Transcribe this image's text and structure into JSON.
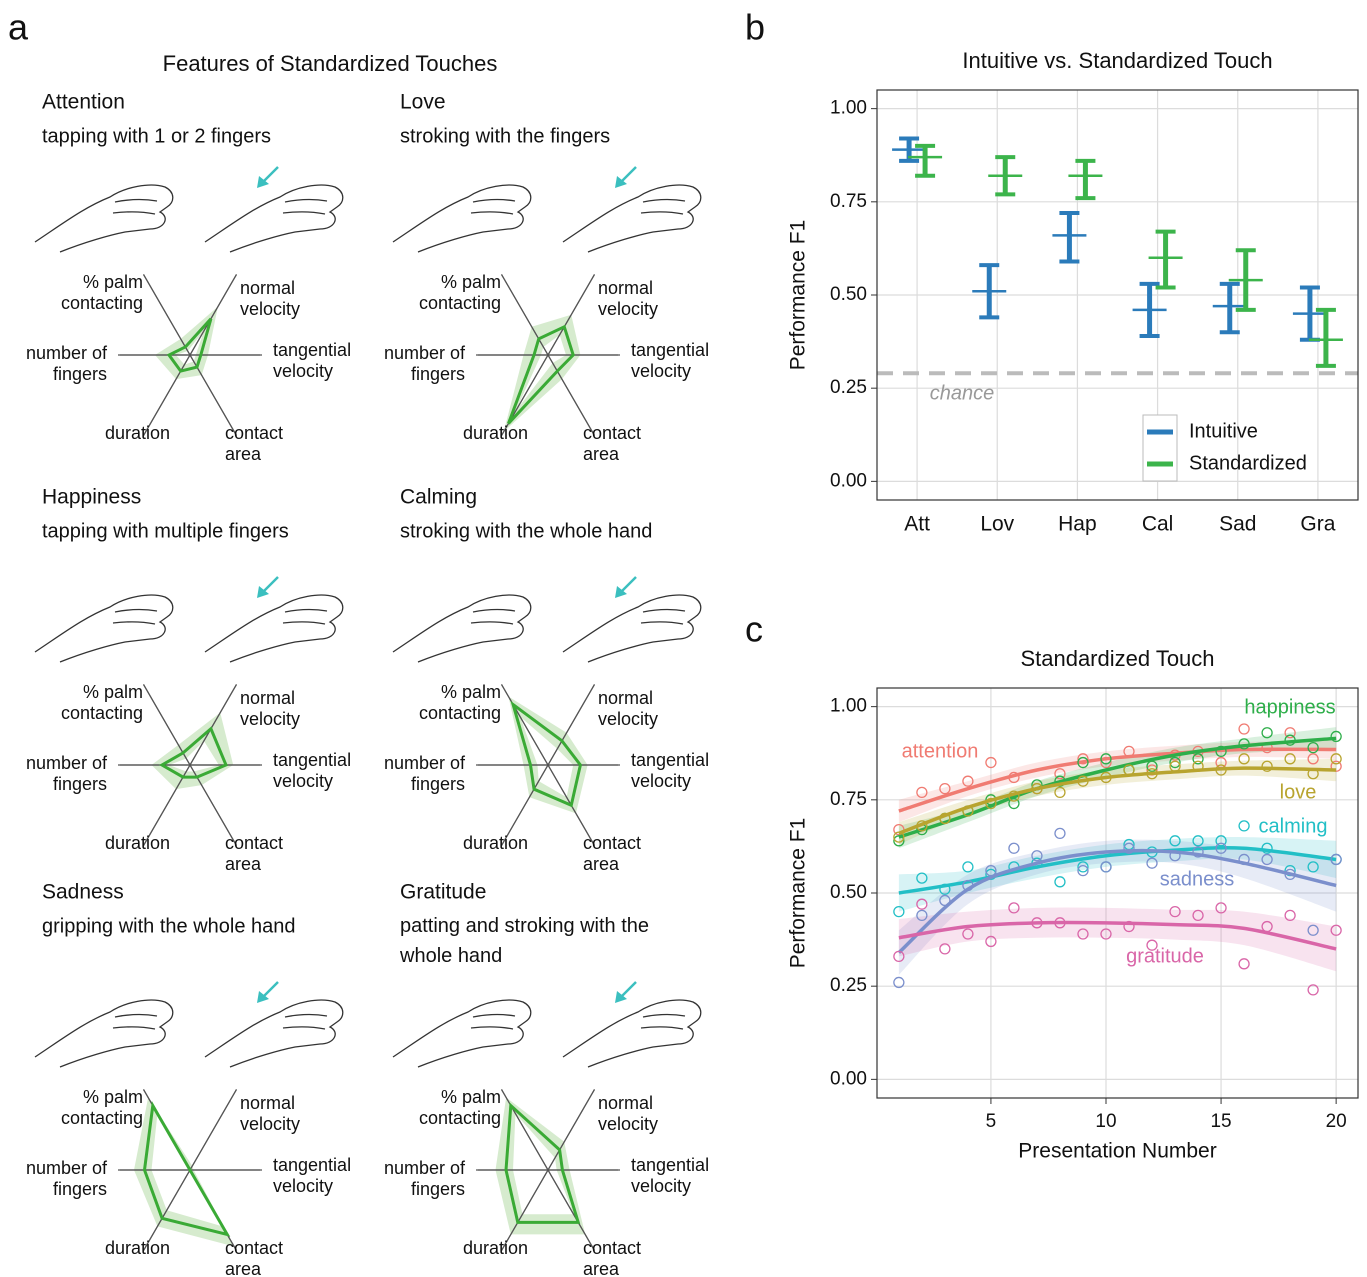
{
  "panels": [
    {
      "label": "a",
      "title": "Features of Standardized Touches"
    },
    {
      "label": "b"
    },
    {
      "label": "c"
    }
  ],
  "chart_data": [
    {
      "type": "radar",
      "title": "Attention",
      "subtitle": "tapping with 1 or 2 fingers",
      "axes": [
        "% palm\ncontacting",
        "normal\nvelocity",
        "tangential\nvelocity",
        "contact\narea",
        "duration",
        "number of\nfingers"
      ],
      "rlim": [
        0,
        1
      ],
      "color": "#3aaa35",
      "values": [
        0.1,
        0.45,
        0.15,
        0.15,
        0.2,
        0.3
      ],
      "band_lower": [
        0.05,
        0.3,
        0.08,
        0.08,
        0.12,
        0.2
      ],
      "band_upper": [
        0.2,
        0.6,
        0.25,
        0.25,
        0.3,
        0.5
      ]
    },
    {
      "type": "radar",
      "title": "Love",
      "subtitle": "stroking with the fingers",
      "axes": [
        "% palm\ncontacting",
        "normal\nvelocity",
        "tangential\nvelocity",
        "contact\narea",
        "duration",
        "number of\nfingers"
      ],
      "rlim": [
        0,
        1
      ],
      "color": "#3aaa35",
      "values": [
        0.2,
        0.35,
        0.35,
        0.2,
        0.85,
        0.2
      ],
      "band_lower": [
        0.1,
        0.25,
        0.25,
        0.1,
        0.7,
        0.1
      ],
      "band_upper": [
        0.35,
        0.5,
        0.45,
        0.3,
        0.95,
        0.35
      ]
    },
    {
      "type": "radar",
      "title": "Happiness",
      "subtitle": "tapping with multiple fingers",
      "axes": [
        "% palm\ncontacting",
        "normal\nvelocity",
        "tangential\nvelocity",
        "contact\narea",
        "duration",
        "number of\nfingers"
      ],
      "rlim": [
        0,
        1
      ],
      "color": "#3aaa35",
      "values": [
        0.15,
        0.45,
        0.5,
        0.15,
        0.15,
        0.4
      ],
      "band_lower": [
        0.08,
        0.3,
        0.4,
        0.08,
        0.08,
        0.3
      ],
      "band_upper": [
        0.25,
        0.65,
        0.6,
        0.25,
        0.3,
        0.55
      ]
    },
    {
      "type": "radar",
      "title": "Calming",
      "subtitle": "stroking with the whole hand",
      "axes": [
        "% palm\ncontacting",
        "normal\nvelocity",
        "tangential\nvelocity",
        "contact\narea",
        "duration",
        "number of\nfingers"
      ],
      "rlim": [
        0,
        1
      ],
      "color": "#3aaa35",
      "values": [
        0.75,
        0.3,
        0.45,
        0.5,
        0.3,
        0.25
      ],
      "band_lower": [
        0.6,
        0.2,
        0.35,
        0.4,
        0.2,
        0.15
      ],
      "band_upper": [
        0.85,
        0.4,
        0.55,
        0.6,
        0.4,
        0.35
      ]
    },
    {
      "type": "radar",
      "title": "Sadness",
      "subtitle": "gripping with the whole hand",
      "axes": [
        "% palm\ncontacting",
        "normal\nvelocity",
        "tangential\nvelocity",
        "contact\narea",
        "duration",
        "number of\nfingers"
      ],
      "rlim": [
        0,
        1
      ],
      "color": "#3aaa35",
      "values": [
        0.8,
        0,
        0,
        0.8,
        0.6,
        0.65
      ],
      "band_lower": [
        0.7,
        0,
        0,
        0.7,
        0.5,
        0.55
      ],
      "band_upper": [
        0.9,
        0.05,
        0.05,
        0.95,
        0.7,
        0.8
      ]
    },
    {
      "type": "radar",
      "title": "Gratitude",
      "subtitle": "patting and stroking with the\nwhole hand",
      "axes": [
        "% palm\ncontacting",
        "normal\nvelocity",
        "tangential\nvelocity",
        "contact\narea",
        "duration",
        "number of\nfingers"
      ],
      "rlim": [
        0,
        1
      ],
      "color": "#3aaa35",
      "values": [
        0.8,
        0.25,
        0.2,
        0.65,
        0.65,
        0.6
      ],
      "band_lower": [
        0.7,
        0.15,
        0.12,
        0.55,
        0.55,
        0.5
      ],
      "band_upper": [
        0.9,
        0.35,
        0.3,
        0.8,
        0.8,
        0.75
      ]
    },
    {
      "type": "errorbar",
      "title": "Intuitive vs. Standardized Touch",
      "ylabel": "Performance F1",
      "categories": [
        "Att",
        "Lov",
        "Hap",
        "Cal",
        "Sad",
        "Gra"
      ],
      "series": [
        {
          "name": "Intuitive",
          "color": "#2b7bba",
          "values": [
            0.89,
            0.51,
            0.66,
            0.46,
            0.47,
            0.45
          ],
          "lower": [
            0.86,
            0.44,
            0.59,
            0.39,
            0.4,
            0.38
          ],
          "upper": [
            0.92,
            0.58,
            0.72,
            0.53,
            0.53,
            0.52
          ]
        },
        {
          "name": "Standardized",
          "color": "#3cb44b",
          "values": [
            0.87,
            0.82,
            0.82,
            0.6,
            0.54,
            0.38
          ],
          "lower": [
            0.82,
            0.77,
            0.76,
            0.52,
            0.46,
            0.31
          ],
          "upper": [
            0.9,
            0.87,
            0.86,
            0.67,
            0.62,
            0.46
          ]
        }
      ],
      "ylim": [
        -0.05,
        1.05
      ],
      "yticks": [
        {
          "value": 0,
          "label": "0.00"
        },
        {
          "value": 0.25,
          "label": "0.25"
        },
        {
          "value": 0.5,
          "label": "0.50"
        },
        {
          "value": 0.75,
          "label": "0.75"
        },
        {
          "value": 1,
          "label": "1.00"
        }
      ],
      "reference_line": {
        "value": 0.29,
        "label": "chance"
      },
      "grid": true,
      "legend": "bottom-right"
    },
    {
      "type": "scatter_smooth",
      "title": "Standardized Touch",
      "xlabel": "Presentation Number",
      "ylabel": "Performance F1",
      "x": [
        1,
        2,
        3,
        4,
        5,
        6,
        7,
        8,
        9,
        10,
        11,
        12,
        13,
        14,
        15,
        16,
        17,
        18,
        19,
        20
      ],
      "fit_x": [
        1,
        4,
        7,
        10,
        13,
        16,
        20
      ],
      "series": [
        {
          "name": "attention",
          "color": "#f07b72",
          "values": [
            0.67,
            0.77,
            0.78,
            0.8,
            0.85,
            0.81,
            0.78,
            0.82,
            0.86,
            0.85,
            0.88,
            0.83,
            0.87,
            0.88,
            0.85,
            0.94,
            0.89,
            0.93,
            0.86,
            0.84
          ],
          "fit": [
            0.72,
            0.78,
            0.83,
            0.86,
            0.875,
            0.885,
            0.885
          ],
          "fit_lower": [
            0.69,
            0.76,
            0.81,
            0.84,
            0.855,
            0.865,
            0.86
          ],
          "fit_upper": [
            0.75,
            0.8,
            0.85,
            0.88,
            0.895,
            0.905,
            0.91
          ]
        },
        {
          "name": "happiness",
          "color": "#2eae4a",
          "values": [
            0.64,
            0.67,
            0.7,
            0.72,
            0.75,
            0.74,
            0.79,
            0.8,
            0.85,
            0.86,
            0.83,
            0.84,
            0.85,
            0.86,
            0.88,
            0.9,
            0.93,
            0.91,
            0.89,
            0.92
          ],
          "fit": [
            0.65,
            0.71,
            0.78,
            0.83,
            0.87,
            0.895,
            0.915
          ],
          "fit_lower": [
            0.62,
            0.69,
            0.76,
            0.81,
            0.85,
            0.875,
            0.885
          ],
          "fit_upper": [
            0.68,
            0.73,
            0.8,
            0.85,
            0.89,
            0.915,
            0.945
          ]
        },
        {
          "name": "love",
          "color": "#b8a42f",
          "values": [
            0.65,
            0.68,
            0.7,
            0.72,
            0.74,
            0.76,
            0.78,
            0.77,
            0.8,
            0.81,
            0.83,
            0.82,
            0.84,
            0.84,
            0.83,
            0.86,
            0.84,
            0.86,
            0.82,
            0.86
          ],
          "fit": [
            0.66,
            0.73,
            0.78,
            0.81,
            0.825,
            0.835,
            0.83
          ],
          "fit_lower": [
            0.63,
            0.71,
            0.76,
            0.79,
            0.805,
            0.815,
            0.8
          ],
          "fit_upper": [
            0.69,
            0.75,
            0.8,
            0.83,
            0.845,
            0.855,
            0.86
          ]
        },
        {
          "name": "calming",
          "color": "#22bfc6",
          "values": [
            0.45,
            0.54,
            0.51,
            0.57,
            0.55,
            0.57,
            0.58,
            0.53,
            0.57,
            0.57,
            0.63,
            0.61,
            0.64,
            0.64,
            0.64,
            0.68,
            0.62,
            0.56,
            0.57,
            0.59
          ],
          "fit": [
            0.5,
            0.53,
            0.57,
            0.6,
            0.615,
            0.62,
            0.59
          ],
          "fit_lower": [
            0.45,
            0.5,
            0.54,
            0.57,
            0.585,
            0.59,
            0.54
          ],
          "fit_upper": [
            0.55,
            0.56,
            0.6,
            0.63,
            0.645,
            0.65,
            0.64
          ]
        },
        {
          "name": "sadness",
          "color": "#7b8fcc",
          "values": [
            0.26,
            0.44,
            0.48,
            0.52,
            0.56,
            0.62,
            0.6,
            0.66,
            0.56,
            0.57,
            0.62,
            0.58,
            0.6,
            0.61,
            0.62,
            0.59,
            0.59,
            0.55,
            0.4,
            0.59
          ],
          "fit": [
            0.34,
            0.51,
            0.58,
            0.61,
            0.61,
            0.58,
            0.52
          ],
          "fit_lower": [
            0.28,
            0.47,
            0.55,
            0.58,
            0.58,
            0.54,
            0.45
          ],
          "fit_upper": [
            0.4,
            0.55,
            0.61,
            0.64,
            0.64,
            0.62,
            0.59
          ]
        },
        {
          "name": "gratitude",
          "color": "#d966a8",
          "values": [
            0.33,
            0.47,
            0.35,
            0.39,
            0.37,
            0.46,
            0.42,
            0.42,
            0.39,
            0.39,
            0.41,
            0.36,
            0.45,
            0.44,
            0.46,
            0.31,
            0.41,
            0.44,
            0.24,
            0.4
          ],
          "fit": [
            0.38,
            0.41,
            0.42,
            0.42,
            0.415,
            0.405,
            0.35
          ],
          "fit_lower": [
            0.33,
            0.37,
            0.38,
            0.38,
            0.375,
            0.36,
            0.29
          ],
          "fit_upper": [
            0.43,
            0.45,
            0.46,
            0.46,
            0.455,
            0.45,
            0.41
          ]
        }
      ],
      "xlim": [
        0.05,
        20.95
      ],
      "ylim": [
        -0.05,
        1.05
      ],
      "xticks": [
        5,
        10,
        15,
        20
      ],
      "yticks": [
        {
          "value": 0,
          "label": "0.00"
        },
        {
          "value": 0.25,
          "label": "0.25"
        },
        {
          "value": 0.5,
          "label": "0.50"
        },
        {
          "value": 0.75,
          "label": "0.75"
        },
        {
          "value": 1,
          "label": "1.00"
        }
      ],
      "grid": true
    }
  ]
}
